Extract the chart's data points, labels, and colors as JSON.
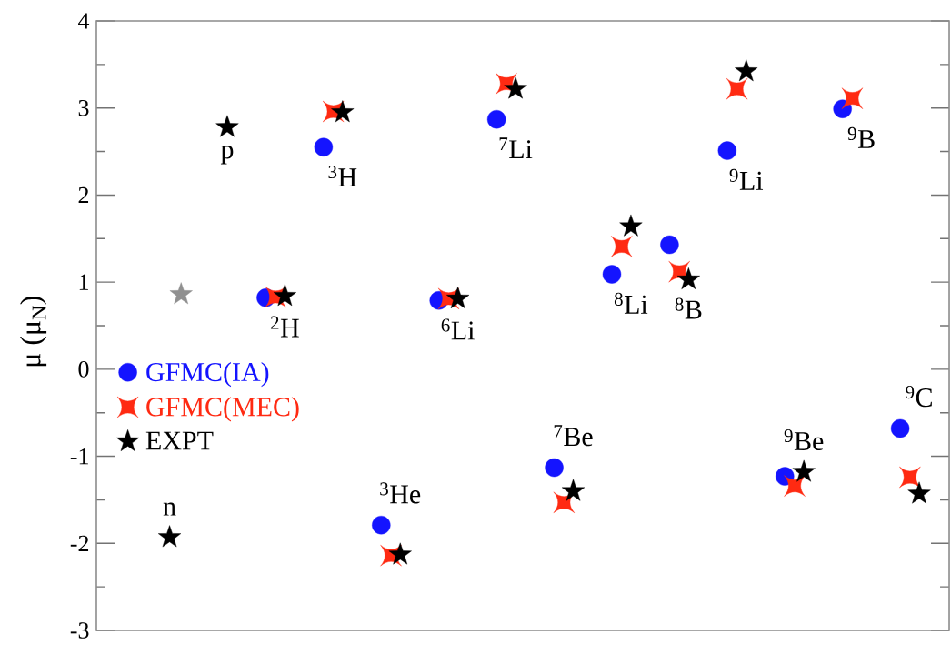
{
  "chart_data": {
    "type": "scatter",
    "ylabel": "μ (μ$_{N}$)",
    "categories": [
      "n",
      "p",
      "$^{2}$H",
      "$^{3}$H",
      "$^{3}$He",
      "$^{6}$Li",
      "$^{7}$Li",
      "$^{7}$Be",
      "$^{8}$Li",
      "$^{8}$B",
      "$^{9}$Li",
      "$^{9}$Be",
      "$^{9}$B",
      "$^{9}$C"
    ],
    "series": [
      {
        "name": "GFMC(IA)",
        "color": "#1414ff",
        "marker": "circle",
        "values": [
          null,
          null,
          0.82,
          2.55,
          -1.79,
          0.79,
          2.87,
          -1.13,
          1.09,
          1.43,
          2.51,
          -1.23,
          2.99,
          -0.68
        ]
      },
      {
        "name": "GFMC(MEC)",
        "color": "#ff2a12",
        "marker": "square",
        "values": [
          null,
          null,
          0.83,
          2.96,
          -2.14,
          0.81,
          3.28,
          -1.53,
          1.41,
          1.12,
          3.22,
          -1.34,
          3.11,
          -1.24
        ]
      },
      {
        "name": "EXPT",
        "color": "#000000",
        "marker": "star",
        "values": [
          -1.93,
          2.78,
          0.84,
          2.95,
          -2.13,
          0.81,
          3.22,
          -1.4,
          1.64,
          1.03,
          3.42,
          -1.18,
          null,
          -1.43
        ]
      },
      {
        "color": "#909090",
        "marker": "star",
        "values": [
          0.86,
          null,
          null,
          null,
          null,
          null,
          null,
          null,
          null,
          null,
          null,
          null,
          null,
          null
        ]
      }
    ],
    "ylim": [
      -3,
      4
    ],
    "yticks": [
      -3,
      {
        "value": -2.5,
        "label": null
      },
      -2,
      {
        "value": -1.5,
        "label": null
      },
      -1,
      {
        "value": -0.5,
        "label": null
      },
      0,
      {
        "value": 0.5,
        "label": null
      },
      1,
      {
        "value": 1.5,
        "label": null
      },
      2,
      {
        "value": 2.5,
        "label": null
      },
      3,
      {
        "value": 3.5,
        "label": null
      },
      4
    ],
    "legend": "left"
  }
}
